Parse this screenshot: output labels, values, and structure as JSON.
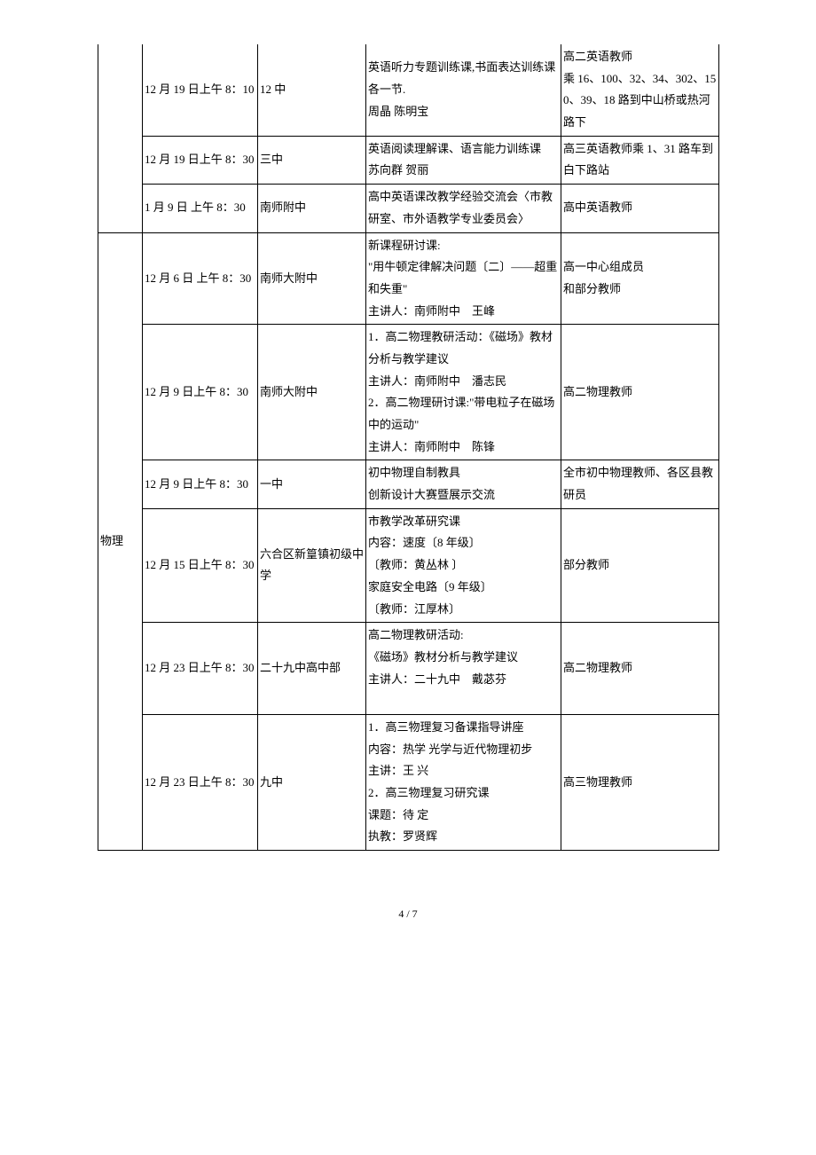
{
  "table": {
    "columnWidths": [
      "50px",
      "130px",
      "122px",
      "220px",
      "178px"
    ],
    "rows": [
      {
        "subject": "",
        "subjectRowspan": 3,
        "subjectNoTop": true,
        "time": "12 月 19 日上午 8：10",
        "place": "12 中",
        "content": "英语听力专题训练课,书面表达训练课各一节.\n周晶 陈明宝",
        "attendees": "高二英语教师\n乘 16、100、32、34、302、150、39、18 路到中山桥或热河路下"
      },
      {
        "time": "12 月 19 日上午 8：30",
        "place": "三中",
        "content": "英语阅读理解课、语言能力训练课\n苏向群 贺丽",
        "attendees": "高三英语教师乘 1、31 路车到白下路站"
      },
      {
        "time": "1 月 9 日 上午 8：30",
        "place": "南师附中",
        "content": "高中英语课改教学经验交流会〈市教研室、市外语教学专业委员会〉",
        "attendees": "高中英语教师"
      },
      {
        "subject": "物理",
        "subjectRowspan": 6,
        "time": "12 月 6 日 上午 8：30",
        "place": "南师大附中",
        "content": "新课程研讨课:\n\"用牛顿定律解决问题〔二〕——超重和失重\"\n主讲人：南师附中　王峰",
        "attendees": "高一中心组成员\n和部分教师"
      },
      {
        "time": "12 月 9 日上午 8：30",
        "place": "南师大附中",
        "content": "1．高二物理教研活动：《磁场》教材分析与教学建议\n主讲人：南师附中　潘志民\n2．高二物理研讨课:\"带电粒子在磁场中的运动\"\n主讲人：南师附中　陈锋",
        "attendees": "高二物理教师"
      },
      {
        "time": "12 月 9 日上午 8：30",
        "place": "一中",
        "content": "初中物理自制教具\n创新设计大赛暨展示交流",
        "attendees": "全市初中物理教师、各区县教研员"
      },
      {
        "time": "12 月 15 日上午 8：30",
        "place": "六合区新篁镇初级中学",
        "content": "市教学改革研究课\n内容：速度〔8 年级〕\n〔教师：黄丛林 〕\n家庭安全电路〔9 年级〕\n〔教师：江厚林〕",
        "attendees": "部分教师"
      },
      {
        "time": "12 月 23 日上午 8：30",
        "place": "二十九中高中部",
        "content": "高二物理教研活动:\n《磁场》教材分析与教学建议\n主讲人：二十九中　戴苾芬\n　",
        "attendees": "高二物理教师"
      },
      {
        "time": "12 月 23 日上午 8：30",
        "place": "九中",
        "content": "1．高三物理复习备课指导讲座\n内容：热学 光学与近代物理初步\n主讲：王 兴\n2．高三物理复习研究课\n课题：待 定\n执教：罗贤辉",
        "attendees": "高三物理教师"
      }
    ]
  },
  "pager": "4 / 7"
}
